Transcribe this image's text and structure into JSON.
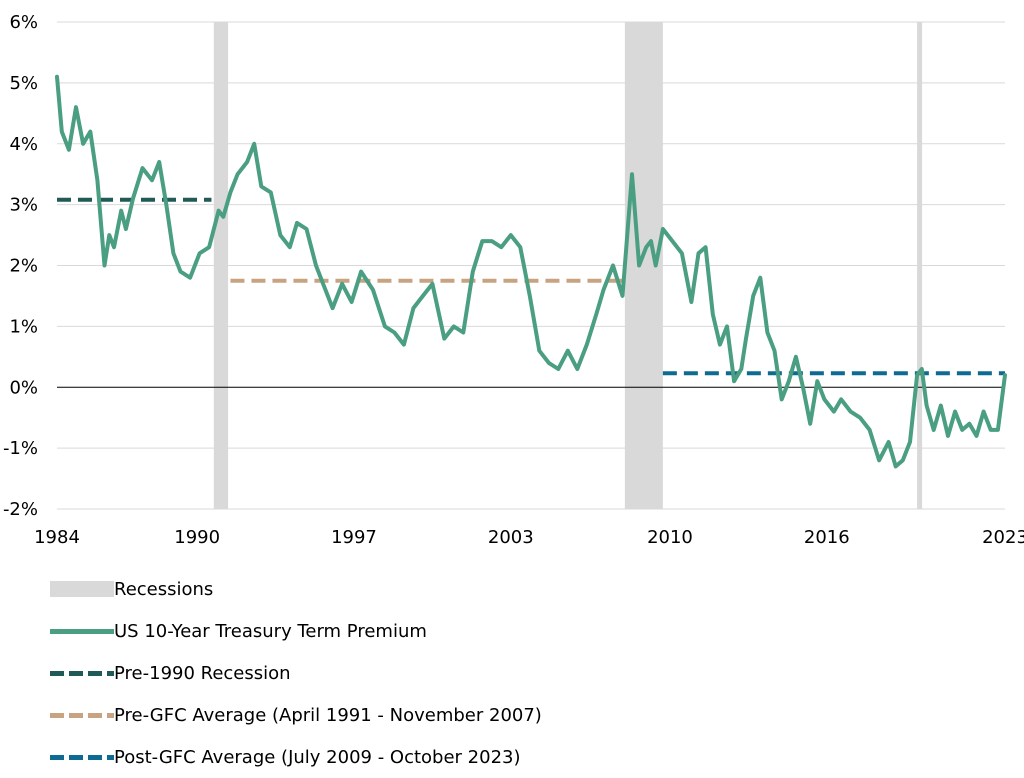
{
  "chart_data": {
    "type": "line",
    "title": "",
    "xlabel": "",
    "ylabel": "",
    "ylim": [
      -2,
      6
    ],
    "xlim": [
      1984.0,
      2023.9
    ],
    "x_ticks": [
      {
        "value": 1984.0,
        "label": "1984"
      },
      {
        "value": 1989.9,
        "label": "1990"
      },
      {
        "value": 1996.5,
        "label": "1997"
      },
      {
        "value": 2003.1,
        "label": "2003"
      },
      {
        "value": 2009.8,
        "label": "2010"
      },
      {
        "value": 2016.4,
        "label": "2016"
      },
      {
        "value": 2023.9,
        "label": "2023"
      }
    ],
    "y_ticks": [
      {
        "value": 6,
        "label": "6%"
      },
      {
        "value": 5,
        "label": "5%"
      },
      {
        "value": 4,
        "label": "4%"
      },
      {
        "value": 3,
        "label": "3%"
      },
      {
        "value": 2,
        "label": "2%"
      },
      {
        "value": 1,
        "label": "1%"
      },
      {
        "value": 0,
        "label": "0%"
      },
      {
        "value": -1,
        "label": "-1%"
      },
      {
        "value": -2,
        "label": "-2%"
      }
    ],
    "grid": true,
    "legend_position": "bottom",
    "recessions": [
      [
        1990.6,
        1991.2
      ],
      [
        2007.9,
        2009.5
      ],
      [
        2020.2,
        2020.3
      ]
    ],
    "series": [
      {
        "name": "US 10-Year Treasury Term Premium",
        "color": "#4a9e82",
        "x": [
          1984.0,
          1984.2,
          1984.5,
          1984.8,
          1985.1,
          1985.4,
          1985.7,
          1986.0,
          1986.2,
          1986.4,
          1986.7,
          1986.9,
          1987.2,
          1987.6,
          1988.0,
          1988.3,
          1988.6,
          1988.9,
          1989.2,
          1989.6,
          1990.0,
          1990.4,
          1990.8,
          1991.0,
          1991.3,
          1991.6,
          1992.0,
          1992.3,
          1992.6,
          1993.0,
          1993.4,
          1993.8,
          1994.1,
          1994.5,
          1994.9,
          1995.2,
          1995.6,
          1996.0,
          1996.4,
          1996.8,
          1997.3,
          1997.8,
          1998.2,
          1998.6,
          1999.0,
          1999.4,
          1999.8,
          2000.3,
          2000.7,
          2001.1,
          2001.5,
          2001.9,
          2002.3,
          2002.7,
          2003.1,
          2003.5,
          2003.9,
          2004.3,
          2004.7,
          2005.1,
          2005.5,
          2005.9,
          2006.3,
          2006.7,
          2007.0,
          2007.4,
          2007.8,
          2008.2,
          2008.5,
          2008.8,
          2009.0,
          2009.2,
          2009.5,
          2009.9,
          2010.3,
          2010.7,
          2011.0,
          2011.3,
          2011.6,
          2011.9,
          2012.2,
          2012.5,
          2012.8,
          2013.0,
          2013.3,
          2013.6,
          2013.9,
          2014.2,
          2014.5,
          2014.8,
          2015.1,
          2015.4,
          2015.7,
          2016.0,
          2016.3,
          2016.7,
          2017.0,
          2017.4,
          2017.8,
          2018.2,
          2018.6,
          2019.0,
          2019.3,
          2019.6,
          2019.9,
          2020.2,
          2020.4,
          2020.6,
          2020.9,
          2021.2,
          2021.5,
          2021.8,
          2022.1,
          2022.4,
          2022.7,
          2023.0,
          2023.3,
          2023.6,
          2023.9
        ],
        "values": [
          5.1,
          4.2,
          3.9,
          4.6,
          4.0,
          4.2,
          3.4,
          2.0,
          2.5,
          2.3,
          2.9,
          2.6,
          3.1,
          3.6,
          3.4,
          3.7,
          3.0,
          2.2,
          1.9,
          1.8,
          2.2,
          2.3,
          2.9,
          2.8,
          3.2,
          3.5,
          3.7,
          4.0,
          3.3,
          3.2,
          2.5,
          2.3,
          2.7,
          2.6,
          2.0,
          1.7,
          1.3,
          1.7,
          1.4,
          1.9,
          1.6,
          1.0,
          0.9,
          0.7,
          1.3,
          1.5,
          1.7,
          0.8,
          1.0,
          0.9,
          1.9,
          2.4,
          2.4,
          2.3,
          2.5,
          2.3,
          1.5,
          0.6,
          0.4,
          0.3,
          0.6,
          0.3,
          0.7,
          1.2,
          1.6,
          2.0,
          1.5,
          3.5,
          2.0,
          2.3,
          2.4,
          2.0,
          2.6,
          2.4,
          2.2,
          1.4,
          2.2,
          2.3,
          1.2,
          0.7,
          1.0,
          0.1,
          0.3,
          0.8,
          1.5,
          1.8,
          0.9,
          0.6,
          -0.2,
          0.1,
          0.5,
          0.0,
          -0.6,
          0.1,
          -0.2,
          -0.4,
          -0.2,
          -0.4,
          -0.5,
          -0.7,
          -1.2,
          -0.9,
          -1.3,
          -1.2,
          -0.9,
          0.2,
          0.3,
          -0.3,
          -0.7,
          -0.3,
          -0.8,
          -0.4,
          -0.7,
          -0.6,
          -0.8,
          -0.4,
          -0.7,
          -0.7,
          0.2
        ]
      },
      {
        "name": "Pre-1990 Recession",
        "color": "#1f5a56",
        "style": "dashed",
        "x": [
          1984.0,
          1990.5
        ],
        "values": [
          3.08,
          3.08
        ]
      },
      {
        "name": "Pre-GFC Average (April 1991 - November 2007)",
        "color": "#c8a381",
        "style": "dashed",
        "x": [
          1991.3,
          2007.9
        ],
        "values": [
          1.75,
          1.75
        ]
      },
      {
        "name": "Post-GFC Average (July 2009 - October 2023)",
        "color": "#0e6a91",
        "style": "dashed",
        "x": [
          2009.5,
          2023.9
        ],
        "values": [
          0.23,
          0.23
        ]
      }
    ]
  },
  "legend": [
    {
      "label": "Recessions",
      "kind": "rect",
      "color": "#d9d9d9"
    },
    {
      "label": "US 10-Year Treasury Term Premium",
      "kind": "line",
      "color": "#4a9e82"
    },
    {
      "label": "Pre-1990 Recession",
      "kind": "dash",
      "color": "#1f5a56"
    },
    {
      "label": "Pre-GFC Average (April 1991 - November 2007)",
      "kind": "dash",
      "color": "#c8a381"
    },
    {
      "label": "Post-GFC Average (July 2009 - October 2023)",
      "kind": "dash",
      "color": "#0e6a91"
    }
  ]
}
